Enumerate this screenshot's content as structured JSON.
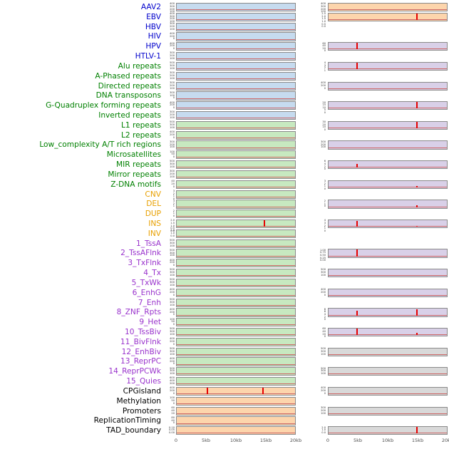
{
  "chart_data": {
    "type": "line",
    "subtype": "genomic-feature-track-panels",
    "title": "",
    "x_axis": {
      "ticks": [
        "0",
        "5kb",
        "10kb",
        "15kb",
        "20kb"
      ],
      "range_kb": [
        0,
        20
      ]
    },
    "panels": [
      "left-track-panel",
      "right-track-panel"
    ],
    "label_colors": {
      "virus": "#0000cc",
      "repeat": "#008000",
      "sv": "#e8a000",
      "chromatin": "#9932cc",
      "other": "#000000"
    },
    "track_colors": {
      "blue": "#c6dbef",
      "green": "#c7e9c0",
      "orange": "#fdd5ac",
      "purple": "#d9d0e8",
      "gray": "#d9d9d9"
    },
    "spike_color": "#e60000",
    "baseline_color": "#cc6666",
    "axis_text_color": "#4d4d4d",
    "rows": [
      {
        "label": "AAV2",
        "group": "virus",
        "left": {
          "bg": "blue",
          "ticks": [
            "400",
            "300",
            "200",
            "100"
          ],
          "spikes": []
        }
      },
      {
        "label": "EBV",
        "group": "virus",
        "left": {
          "bg": "blue",
          "ticks": [
            "400",
            "300",
            "200",
            "100"
          ],
          "spikes": []
        }
      },
      {
        "label": "HBV",
        "group": "virus",
        "left": {
          "bg": "blue",
          "ticks": [
            "300",
            "200",
            "100"
          ],
          "spikes": []
        }
      },
      {
        "label": "HIV",
        "group": "virus",
        "left": {
          "bg": "blue",
          "ticks": [
            "400",
            "200",
            "0"
          ],
          "spikes": []
        }
      },
      {
        "label": "HPV",
        "group": "virus",
        "left": {
          "bg": "blue",
          "ticks": [
            "400",
            "200",
            "0"
          ],
          "spikes": []
        }
      },
      {
        "label": "HTLV-1",
        "group": "virus",
        "left": {
          "bg": "blue",
          "ticks": [
            "300",
            "200",
            "100"
          ],
          "spikes": []
        }
      },
      {
        "label": "Alu repeats",
        "group": "repeat",
        "left": {
          "bg": "blue",
          "ticks": [
            "500",
            "300",
            "100"
          ],
          "spikes": []
        }
      },
      {
        "label": "A-Phased repeats",
        "group": "repeat",
        "left": {
          "bg": "blue",
          "ticks": [
            "300",
            "200",
            "100"
          ],
          "spikes": []
        }
      },
      {
        "label": "Directed repeats",
        "group": "repeat",
        "left": {
          "bg": "blue",
          "ticks": [
            "300",
            "200",
            "100"
          ],
          "spikes": []
        }
      },
      {
        "label": "DNA transposons",
        "group": "repeat",
        "left": {
          "bg": "blue",
          "ticks": [
            "300",
            "100",
            "0"
          ],
          "spikes": []
        }
      },
      {
        "label": "G-Quadruplex forming repeats",
        "group": "repeat",
        "left": {
          "bg": "blue",
          "ticks": [
            "400",
            "200",
            "0"
          ],
          "spikes": []
        }
      },
      {
        "label": "Inverted repeats",
        "group": "repeat",
        "left": {
          "bg": "blue",
          "ticks": [
            "300",
            "200",
            "100"
          ],
          "spikes": []
        }
      },
      {
        "label": "L1 repeats",
        "group": "repeat",
        "left": {
          "bg": "green",
          "ticks": [
            "500",
            "300",
            "100"
          ],
          "spikes": []
        }
      },
      {
        "label": "L2 repeats",
        "group": "repeat",
        "left": {
          "bg": "green",
          "ticks": [
            "400",
            "200",
            "0"
          ],
          "spikes": []
        }
      },
      {
        "label": "Low_complexity A/T rich regions",
        "group": "repeat",
        "left": {
          "bg": "green",
          "ticks": [
            "300",
            "200",
            "100"
          ],
          "spikes": []
        }
      },
      {
        "label": "Microsatellites",
        "group": "repeat",
        "left": {
          "bg": "green",
          "ticks": [
            "100",
            "50",
            "0"
          ],
          "spikes": []
        }
      },
      {
        "label": "MIR repeats",
        "group": "repeat",
        "left": {
          "bg": "green",
          "ticks": [
            "500",
            "300",
            "100"
          ],
          "spikes": []
        }
      },
      {
        "label": "Mirror repeats",
        "group": "repeat",
        "left": {
          "bg": "green",
          "ticks": [
            "300",
            "200",
            "100"
          ],
          "spikes": []
        }
      },
      {
        "label": "Z-DNA motifs",
        "group": "repeat",
        "left": {
          "bg": "green",
          "ticks": [
            "40",
            "20",
            "0"
          ],
          "spikes": []
        }
      },
      {
        "label": "CNV",
        "group": "sv",
        "left": {
          "bg": "green",
          "ticks": [
            "3",
            "2",
            "1",
            "0"
          ],
          "spikes": []
        }
      },
      {
        "label": "DEL",
        "group": "sv",
        "left": {
          "bg": "green",
          "ticks": [
            "3",
            "2",
            "1"
          ],
          "spikes": []
        }
      },
      {
        "label": "DUP",
        "group": "sv",
        "left": {
          "bg": "green",
          "ticks": [
            "2",
            "1",
            "0"
          ],
          "spikes": []
        }
      },
      {
        "label": "INS",
        "group": "sv",
        "left": {
          "bg": "green",
          "ticks": [
            "2.0",
            "1.5",
            "1.0",
            "0.5",
            "0.0"
          ],
          "spikes": [
            {
              "kb": 14.6,
              "h": 1.0
            }
          ]
        }
      },
      {
        "label": "INV",
        "group": "sv",
        "left": {
          "bg": "green",
          "ticks": [
            "2.0",
            "1.0",
            "0.0"
          ],
          "spikes": []
        }
      },
      {
        "label": "1_TssA",
        "group": "chromatin",
        "left": {
          "bg": "green",
          "ticks": [
            "500",
            "300",
            "100"
          ],
          "spikes": []
        }
      },
      {
        "label": "2_TssAFlnk",
        "group": "chromatin",
        "left": {
          "bg": "green",
          "ticks": [
            "500",
            "300",
            "100"
          ],
          "spikes": []
        }
      },
      {
        "label": "3_TxFlnk",
        "group": "chromatin",
        "left": {
          "bg": "green",
          "ticks": [
            "400",
            "200",
            "0"
          ],
          "spikes": []
        }
      },
      {
        "label": "4_Tx",
        "group": "chromatin",
        "left": {
          "bg": "green",
          "ticks": [
            "500",
            "300",
            "100"
          ],
          "spikes": []
        }
      },
      {
        "label": "5_TxWk",
        "group": "chromatin",
        "left": {
          "bg": "green",
          "ticks": [
            "500",
            "300",
            "100"
          ],
          "spikes": []
        }
      },
      {
        "label": "6_EnhG",
        "group": "chromatin",
        "left": {
          "bg": "green",
          "ticks": [
            "400",
            "200",
            "0"
          ],
          "spikes": []
        }
      },
      {
        "label": "7_Enh",
        "group": "chromatin",
        "left": {
          "bg": "green",
          "ticks": [
            "500",
            "300",
            "100"
          ],
          "spikes": []
        }
      },
      {
        "label": "8_ZNF_Rpts",
        "group": "chromatin",
        "left": {
          "bg": "green",
          "ticks": [
            "400",
            "200",
            "0"
          ],
          "spikes": []
        }
      },
      {
        "label": "9_Het",
        "group": "chromatin",
        "left": {
          "bg": "green",
          "ticks": [
            "100",
            "50",
            "0"
          ],
          "spikes": []
        }
      },
      {
        "label": "10_TssBiv",
        "group": "chromatin",
        "left": {
          "bg": "green",
          "ticks": [
            "500",
            "300",
            "100"
          ],
          "spikes": []
        }
      },
      {
        "label": "11_BivFlnk",
        "group": "chromatin",
        "left": {
          "bg": "green",
          "ticks": [
            "400",
            "200",
            "0"
          ],
          "spikes": []
        }
      },
      {
        "label": "12_EnhBiv",
        "group": "chromatin",
        "left": {
          "bg": "green",
          "ticks": [
            "500",
            "300",
            "100"
          ],
          "spikes": []
        }
      },
      {
        "label": "13_ReprPC",
        "group": "chromatin",
        "left": {
          "bg": "green",
          "ticks": [
            "400",
            "200",
            "0"
          ],
          "spikes": []
        }
      },
      {
        "label": "14_ReprPCWk",
        "group": "chromatin",
        "left": {
          "bg": "green",
          "ticks": [
            "500",
            "300",
            "100"
          ],
          "spikes": []
        }
      },
      {
        "label": "15_Quies",
        "group": "chromatin",
        "left": {
          "bg": "green",
          "ticks": [
            "600",
            "400",
            "200"
          ],
          "spikes": []
        }
      },
      {
        "label": "CPGisland",
        "group": "other",
        "left": {
          "bg": "orange",
          "ticks": [
            "400",
            "200",
            "0"
          ],
          "spikes": [
            {
              "kb": 5.1,
              "h": 1.0
            },
            {
              "kb": 14.4,
              "h": 0.95
            }
          ]
        }
      },
      {
        "label": "Methylation",
        "group": "other",
        "left": {
          "bg": "orange",
          "ticks": [
            "100",
            "50",
            "0"
          ],
          "spikes": []
        }
      },
      {
        "label": "Promoters",
        "group": "other",
        "left": {
          "bg": "orange",
          "ticks": [
            "60",
            "40",
            "20"
          ],
          "spikes": []
        }
      },
      {
        "label": "ReplicationTiming",
        "group": "other",
        "left": {
          "bg": "orange",
          "ticks": [
            "80",
            "40",
            "0"
          ],
          "spikes": []
        }
      },
      {
        "label": "TAD_boundary",
        "group": "other",
        "left": {
          "bg": "orange",
          "ticks": [
            "0.10",
            "0.05",
            "0.00"
          ],
          "spikes": []
        }
      }
    ],
    "right_tracks": [
      {
        "row": 0,
        "bg": "orange",
        "ticks": [
          "400",
          "300",
          "200",
          "100"
        ],
        "spikes": []
      },
      {
        "row": 1,
        "bg": "orange",
        "ticks": [
          "2.5",
          "2.0",
          "1.5",
          "1.0",
          "0.5",
          "0.0"
        ],
        "spikes": [
          {
            "kb": 14.8,
            "h": 1.0
          }
        ]
      },
      {
        "row": 4,
        "bg": "purple",
        "ticks": [
          "60",
          "40",
          "20",
          "0"
        ],
        "spikes": [
          {
            "kb": 4.8,
            "h": 1.0
          }
        ]
      },
      {
        "row": 6,
        "bg": "purple",
        "ticks": [
          "4",
          "3",
          "2",
          "1"
        ],
        "spikes": [
          {
            "kb": 4.8,
            "h": 1.0
          }
        ]
      },
      {
        "row": 8,
        "bg": "purple",
        "ticks": [
          "400",
          "200",
          "0"
        ],
        "spikes": []
      },
      {
        "row": 10,
        "bg": "purple",
        "ticks": [
          "20",
          "15",
          "10",
          "5",
          "0"
        ],
        "spikes": [
          {
            "kb": 14.8,
            "h": 1.0
          }
        ]
      },
      {
        "row": 12,
        "bg": "purple",
        "ticks": [
          "30",
          "20",
          "10",
          "0"
        ],
        "spikes": [
          {
            "kb": 14.8,
            "h": 1.0
          }
        ]
      },
      {
        "row": 14,
        "bg": "purple",
        "ticks": [
          "300",
          "200",
          "100"
        ],
        "spikes": []
      },
      {
        "row": 16,
        "bg": "purple",
        "ticks": [
          "6",
          "4",
          "2",
          "0"
        ],
        "spikes": [
          {
            "kb": 4.8,
            "h": 0.55
          }
        ]
      },
      {
        "row": 18,
        "bg": "purple",
        "ticks": [
          "3",
          "2",
          "1",
          "0"
        ],
        "spikes": [
          {
            "kb": 14.8,
            "h": 0.2
          }
        ]
      },
      {
        "row": 20,
        "bg": "purple",
        "ticks": [
          "2",
          "1",
          "0"
        ],
        "spikes": [
          {
            "kb": 14.8,
            "h": 0.25
          }
        ]
      },
      {
        "row": 22,
        "bg": "purple",
        "ticks": [
          "4",
          "3",
          "2",
          "1",
          "0"
        ],
        "spikes": [
          {
            "kb": 4.8,
            "h": 0.85
          },
          {
            "kb": 14.8,
            "h": 0.15
          }
        ]
      },
      {
        "row": 25,
        "bg": "purple",
        "ticks": [
          "1.00",
          "0.75",
          "0.50",
          "0.25",
          "0.00"
        ],
        "spikes": [
          {
            "kb": 4.8,
            "h": 1.0
          }
        ]
      },
      {
        "row": 27,
        "bg": "purple",
        "ticks": [
          "500",
          "300",
          "100"
        ],
        "spikes": []
      },
      {
        "row": 29,
        "bg": "purple",
        "ticks": [
          "400",
          "200",
          "0"
        ],
        "spikes": []
      },
      {
        "row": 31,
        "bg": "purple",
        "ticks": [
          "8",
          "6",
          "4",
          "2",
          "0"
        ],
        "spikes": [
          {
            "kb": 4.8,
            "h": 0.7
          },
          {
            "kb": 14.8,
            "h": 0.9
          }
        ]
      },
      {
        "row": 33,
        "bg": "purple",
        "ticks": [
          "60",
          "40",
          "20",
          "0"
        ],
        "spikes": [
          {
            "kb": 4.8,
            "h": 1.0
          },
          {
            "kb": 14.8,
            "h": 0.3
          }
        ]
      },
      {
        "row": 35,
        "bg": "gray",
        "ticks": [
          "500",
          "300",
          "100"
        ],
        "spikes": []
      },
      {
        "row": 37,
        "bg": "gray",
        "ticks": [
          "500",
          "300",
          "100"
        ],
        "spikes": []
      },
      {
        "row": 39,
        "bg": "gray",
        "ticks": [
          "400",
          "200",
          "0"
        ],
        "spikes": []
      },
      {
        "row": 41,
        "bg": "gray",
        "ticks": [
          "300",
          "200",
          "100"
        ],
        "spikes": []
      },
      {
        "row": 43,
        "bg": "gray",
        "ticks": [
          "2.0",
          "1.0",
          "0.0"
        ],
        "spikes": [
          {
            "kb": 14.8,
            "h": 1.0
          }
        ]
      }
    ]
  }
}
